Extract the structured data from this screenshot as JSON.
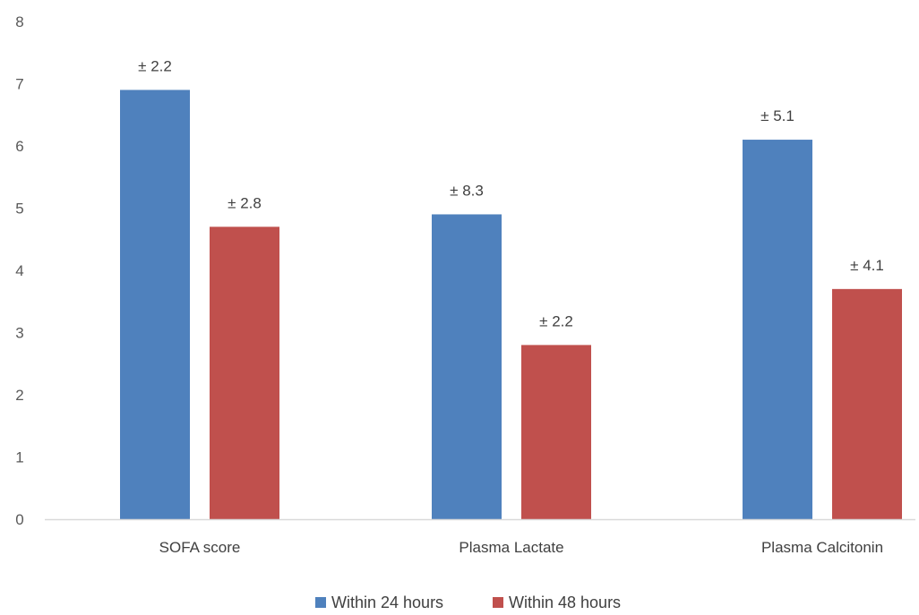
{
  "chart_data": {
    "type": "bar",
    "categories": [
      "SOFA score",
      "Plasma Lactate",
      "Plasma Calcitonin"
    ],
    "series": [
      {
        "name": "Within 24 hours",
        "color": "#4f81bd",
        "values": [
          6.9,
          4.9,
          6.1
        ],
        "labels": [
          "± 2.2",
          "± 8.3",
          "± 5.1"
        ]
      },
      {
        "name": "Within 48 hours",
        "color": "#c0504d",
        "values": [
          4.7,
          2.8,
          3.7
        ],
        "labels": [
          "± 2.8",
          "± 2.2",
          "± 4.1"
        ]
      }
    ],
    "yticks": [
      "0",
      "1",
      "2",
      "3",
      "4",
      "5",
      "6",
      "7",
      "8"
    ],
    "ylim": [
      0,
      8
    ],
    "grid": false,
    "legend": "bottom",
    "title": "",
    "xlabel": "",
    "ylabel": ""
  }
}
